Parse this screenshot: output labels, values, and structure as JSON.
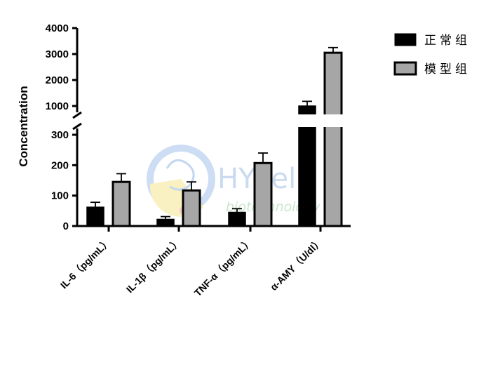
{
  "chart_data": {
    "type": "bar",
    "ylabel": "Concentration",
    "xlabel": "",
    "axis_break": true,
    "lower_segment": {
      "ylim": [
        0,
        300
      ],
      "ticks": [
        0,
        100,
        200,
        300
      ]
    },
    "upper_segment": {
      "ylim": [
        1000,
        4000
      ],
      "ticks": [
        1000,
        2000,
        3000,
        4000
      ]
    },
    "categories": [
      "IL-6（pg/mL）",
      "IL-1β（pg/mL）",
      "TNF-α（pg/mL）",
      "α-AMY（U/dl）"
    ],
    "series": [
      {
        "name": "正常组",
        "color": "#000000",
        "values": [
          62,
          22,
          45,
          1000
        ],
        "errors": [
          16,
          9,
          12,
          180
        ]
      },
      {
        "name": "模型组",
        "color": "#a6a6a6",
        "values": [
          145,
          117,
          207,
          3050
        ],
        "errors": [
          27,
          28,
          33,
          200
        ]
      }
    ],
    "legend_position": "top-right",
    "grid": false
  },
  "watermark": {
    "brand": "HYcell",
    "sub": "biotechnology"
  }
}
